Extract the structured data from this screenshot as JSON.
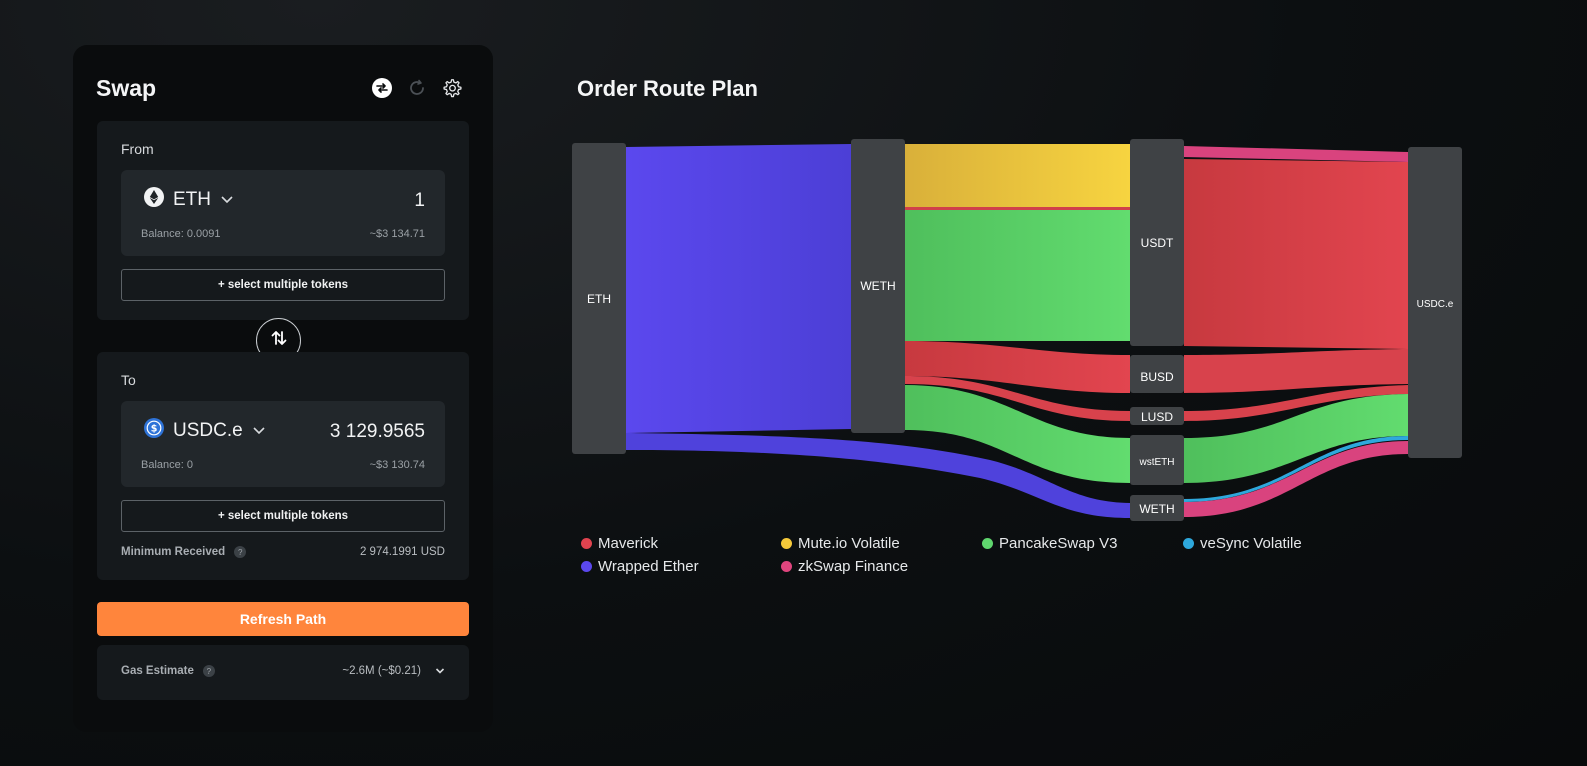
{
  "swap": {
    "title": "Swap",
    "icons": [
      "route-icon",
      "refresh-icon",
      "gear-icon"
    ],
    "from": {
      "label": "From",
      "token": "ETH",
      "amount": "1",
      "balance": "Balance: 0.0091",
      "usd": "~$3 134.71",
      "multi_label": "+ select multiple tokens"
    },
    "to": {
      "label": "To",
      "token": "USDC.e",
      "amount": "3 129.9565",
      "balance": "Balance: 0",
      "usd": "~$3 130.74",
      "multi_label": "+ select multiple tokens",
      "min_received_label": "Minimum Received",
      "min_received_value": "2 974.1991 USD"
    },
    "refresh_label": "Refresh Path",
    "gas": {
      "label": "Gas Estimate",
      "value": "~2.6M (~$0.21)"
    }
  },
  "route": {
    "title": "Order Route Plan",
    "nodes": [
      "ETH",
      "WETH",
      "USDT",
      "BUSD",
      "LUSD",
      "wstETH",
      "WETH",
      "USDC.e"
    ],
    "legend": [
      {
        "name": "Maverick",
        "color": "#e0434f"
      },
      {
        "name": "Mute.io Volatile",
        "color": "#f5c93a"
      },
      {
        "name": "PancakeSwap V3",
        "color": "#5fd66e"
      },
      {
        "name": "veSync Volatile",
        "color": "#2ea8dc"
      },
      {
        "name": "Wrapped Ether",
        "color": "#5b48ee"
      },
      {
        "name": "zkSwap Finance",
        "color": "#e0457e"
      }
    ]
  },
  "colors": {
    "accent": "#ff853c",
    "node": "#3f4245",
    "maverick": "#e0434f",
    "mute": "#f5c93a",
    "pancake": "#5fd66e",
    "vesync": "#2ea8dc",
    "weth": "#5b48ee",
    "zkswap": "#e0457e"
  }
}
